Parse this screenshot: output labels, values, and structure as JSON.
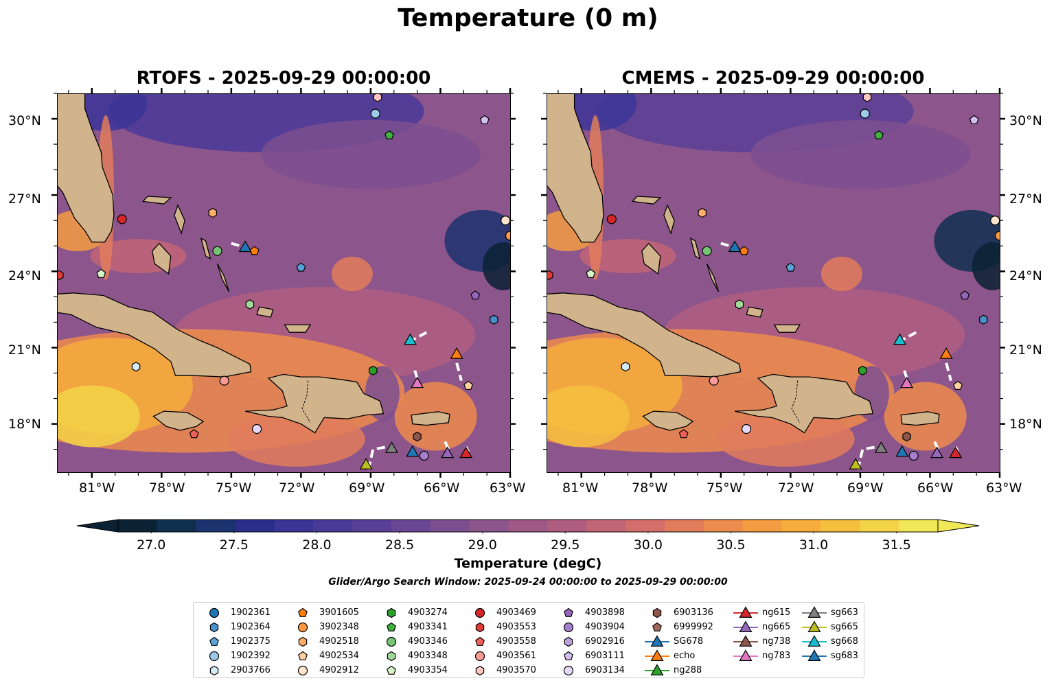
{
  "figure": {
    "title": "Temperature (0 m)",
    "panels": [
      {
        "title": "RTOFS - 2025-09-29 00:00:00",
        "source": "RTOFS"
      },
      {
        "title": "CMEMS - 2025-09-29 00:00:00",
        "source": "CMEMS"
      }
    ]
  },
  "chart_data": {
    "type": "map",
    "variable": "Temperature (degC)",
    "depth": "0 m",
    "lon_range": [
      -82.5,
      -63.0
    ],
    "lat_range": [
      16.1,
      31.0
    ],
    "lon_ticks": [
      "81°W",
      "78°W",
      "75°W",
      "72°W",
      "69°W",
      "66°W",
      "63°W"
    ],
    "lat_ticks": [
      "30°N",
      "27°N",
      "24°N",
      "21°N",
      "18°N"
    ],
    "colorbar": {
      "label": "Temperature (degC)",
      "min": 26.8,
      "max": 31.75,
      "ticks": [
        "27.0",
        "27.5",
        "28.0",
        "28.5",
        "29.0",
        "29.5",
        "30.0",
        "30.5",
        "31.0",
        "31.5"
      ],
      "extend": "both"
    },
    "search_window": "Glider/Argo Search Window: 2025-09-24 00:00:00 to 2025-09-29 00:00:00"
  },
  "legend": [
    {
      "label": "1902361",
      "marker": "circle",
      "color": "#1f77b4"
    },
    {
      "label": "1902364",
      "marker": "hexagon",
      "color": "#4a90c8"
    },
    {
      "label": "1902375",
      "marker": "pentagon",
      "color": "#5ba3d9"
    },
    {
      "label": "1902392",
      "marker": "circle",
      "color": "#9ecae9"
    },
    {
      "label": "2903766",
      "marker": "hexagon",
      "color": "#d6ebf8"
    },
    {
      "label": "3901605",
      "marker": "pentagon",
      "color": "#ff7f0e"
    },
    {
      "label": "3902348",
      "marker": "circle",
      "color": "#fd9840"
    },
    {
      "label": "4902518",
      "marker": "hexagon",
      "color": "#fdae6b"
    },
    {
      "label": "4902534",
      "marker": "pentagon",
      "color": "#fdd0a2"
    },
    {
      "label": "4902912",
      "marker": "circle",
      "color": "#fee6ce"
    },
    {
      "label": "4903274",
      "marker": "hexagon",
      "color": "#2ca02c"
    },
    {
      "label": "4903341",
      "marker": "pentagon",
      "color": "#40b040"
    },
    {
      "label": "4903346",
      "marker": "circle",
      "color": "#74c476"
    },
    {
      "label": "4903348",
      "marker": "hexagon",
      "color": "#a1d99b"
    },
    {
      "label": "4903354",
      "marker": "pentagon",
      "color": "#d5f5c8"
    },
    {
      "label": "4903469",
      "marker": "circle",
      "color": "#d62728"
    },
    {
      "label": "4903553",
      "marker": "hexagon",
      "color": "#e03a3a"
    },
    {
      "label": "4903558",
      "marker": "pentagon",
      "color": "#f0605a"
    },
    {
      "label": "4903561",
      "marker": "circle",
      "color": "#f99c96"
    },
    {
      "label": "4903570",
      "marker": "hexagon",
      "color": "#fcc7c2"
    },
    {
      "label": "4903898",
      "marker": "pentagon",
      "color": "#9467bd"
    },
    {
      "label": "4903904",
      "marker": "circle",
      "color": "#a57fcc"
    },
    {
      "label": "6902916",
      "marker": "hexagon",
      "color": "#bca0dc"
    },
    {
      "label": "6903111",
      "marker": "pentagon",
      "color": "#d4bfee"
    },
    {
      "label": "6903134",
      "marker": "circle",
      "color": "#e6d9f7"
    },
    {
      "label": "6903136",
      "marker": "hexagon",
      "color": "#8c564b"
    },
    {
      "label": "6999992",
      "marker": "pentagon",
      "color": "#a0665a"
    },
    {
      "label": "SG678",
      "marker": "triangle-line",
      "color": "#1f77b4"
    },
    {
      "label": "echo",
      "marker": "triangle-line",
      "color": "#ff7f0e"
    },
    {
      "label": "ng288",
      "marker": "triangle-line",
      "color": "#2ca02c"
    },
    {
      "label": "ng615",
      "marker": "triangle-line",
      "color": "#d62728"
    },
    {
      "label": "ng665",
      "marker": "triangle-line",
      "color": "#9467bd"
    },
    {
      "label": "ng738",
      "marker": "triangle-line",
      "color": "#8c564b"
    },
    {
      "label": "ng783",
      "marker": "triangle-line",
      "color": "#e377c2"
    },
    {
      "label": "sg663",
      "marker": "triangle-line",
      "color": "#7f7f7f"
    },
    {
      "label": "sg665",
      "marker": "triangle-line",
      "color": "#bcbd22"
    },
    {
      "label": "sg668",
      "marker": "triangle-line",
      "color": "#17becf"
    },
    {
      "label": "sg683",
      "marker": "triangle-line",
      "color": "#1f77b4"
    }
  ],
  "observations": [
    {
      "id": "4903469",
      "lon": -79.7,
      "lat": 26.05
    },
    {
      "id": "4903553",
      "lon": -82.4,
      "lat": 23.85
    },
    {
      "id": "4903354",
      "lon": -80.6,
      "lat": 23.9
    },
    {
      "id": "4902518",
      "lon": -75.8,
      "lat": 26.3
    },
    {
      "id": "4903346",
      "lon": -75.6,
      "lat": 24.8
    },
    {
      "id": "sg683",
      "lon": -74.4,
      "lat": 24.95
    },
    {
      "id": "3901605",
      "lon": -74.0,
      "lat": 24.8
    },
    {
      "id": "1902375",
      "lon": -72.0,
      "lat": 24.15
    },
    {
      "id": "4903348",
      "lon": -74.2,
      "lat": 22.7
    },
    {
      "id": "4903570",
      "lon": -68.7,
      "lat": 30.85
    },
    {
      "id": "1902392",
      "lon": -68.8,
      "lat": 30.2
    },
    {
      "id": "4903341",
      "lon": -68.2,
      "lat": 29.35
    },
    {
      "id": "6903111",
      "lon": -64.1,
      "lat": 29.95
    },
    {
      "id": "4902912",
      "lon": -63.2,
      "lat": 26.0
    },
    {
      "id": "3902348",
      "lon": -63.0,
      "lat": 25.4
    },
    {
      "id": "4903898",
      "lon": -64.5,
      "lat": 23.05
    },
    {
      "id": "1902364",
      "lon": -63.7,
      "lat": 22.1
    },
    {
      "id": "sg668",
      "lon": -67.3,
      "lat": 21.3
    },
    {
      "id": "echo",
      "lon": -65.3,
      "lat": 20.75
    },
    {
      "id": "4903274",
      "lon": -68.9,
      "lat": 20.1
    },
    {
      "id": "ng783",
      "lon": -67.0,
      "lat": 19.6
    },
    {
      "id": "4902534",
      "lon": -64.8,
      "lat": 19.5
    },
    {
      "id": "2903766",
      "lon": -79.1,
      "lat": 20.25
    },
    {
      "id": "4903561",
      "lon": -75.3,
      "lat": 19.7
    },
    {
      "id": "4903558",
      "lon": -76.6,
      "lat": 17.6
    },
    {
      "id": "6903134",
      "lon": -73.9,
      "lat": 17.8
    },
    {
      "id": "6903136",
      "lon": -67.0,
      "lat": 17.5
    },
    {
      "id": "sg663",
      "lon": -68.1,
      "lat": 17.05
    },
    {
      "id": "SG678",
      "lon": -67.2,
      "lat": 16.9
    },
    {
      "id": "4903904",
      "lon": -66.7,
      "lat": 16.75
    },
    {
      "id": "ng665",
      "lon": -65.7,
      "lat": 16.85
    },
    {
      "id": "ng615",
      "lon": -64.9,
      "lat": 16.85
    },
    {
      "id": "sg665",
      "lon": -69.2,
      "lat": 16.4
    }
  ]
}
